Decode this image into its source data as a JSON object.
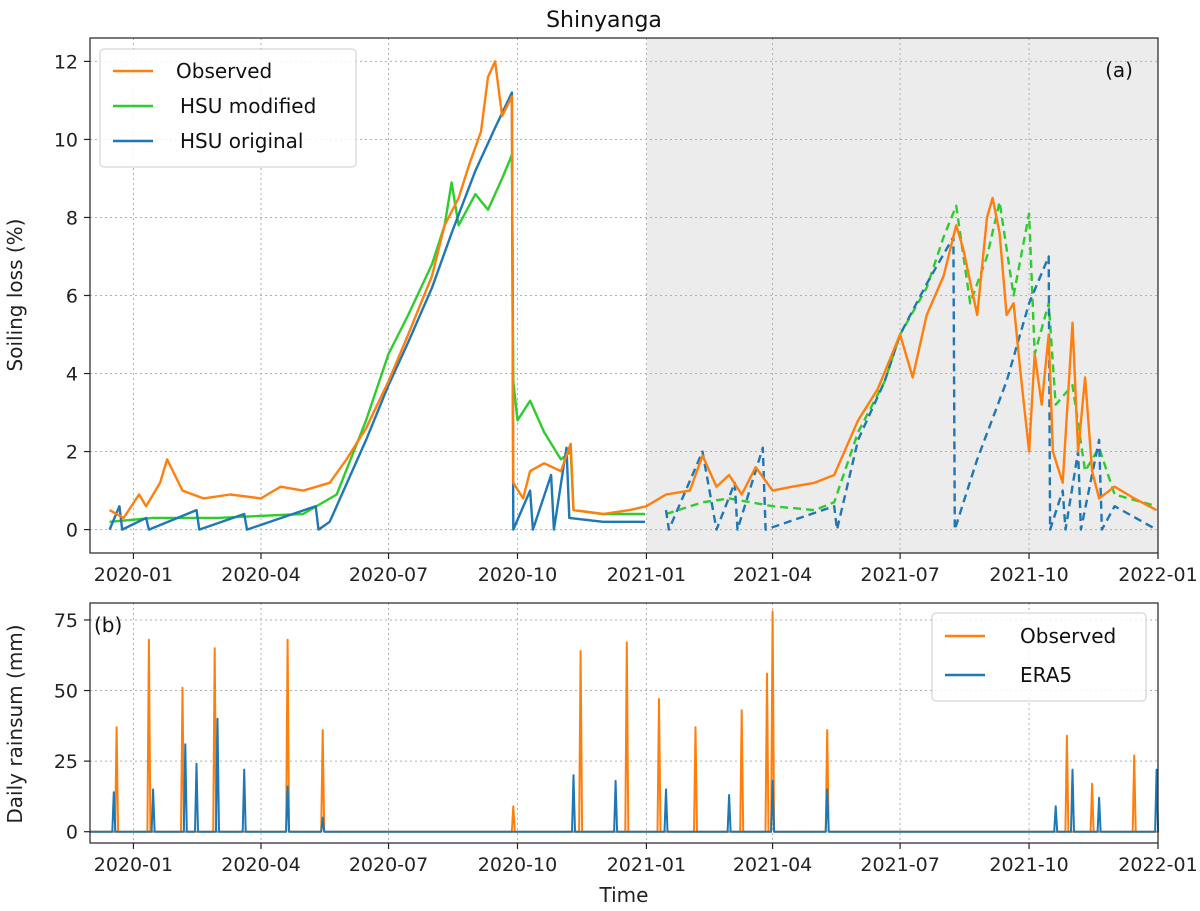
{
  "figure": {
    "title": "Shinyanga"
  },
  "colors": {
    "observed": "#ff7f0e",
    "hsu_modified": "#2ecc2e",
    "hsu_original": "#1f77b4",
    "era5": "#1f77b4",
    "shade": "#ececec",
    "grid": "#b0b0b0"
  },
  "chart_data": [
    {
      "type": "line",
      "panel_label": "(a)",
      "xlabel": "",
      "ylabel": "Soiling loss (%)",
      "x_range": [
        "2019-12-01",
        "2022-01-01"
      ],
      "ylim": [
        -0.6,
        12.6
      ],
      "yticks": [
        0,
        2,
        4,
        6,
        8,
        10,
        12
      ],
      "xticks": [
        "2020-01",
        "2020-04",
        "2020-07",
        "2020-10",
        "2021-01",
        "2021-04",
        "2021-07",
        "2021-10",
        "2022-01"
      ],
      "shaded_region": [
        "2021-01-01",
        "2022-01-01"
      ],
      "grid": true,
      "legend_position": "top-left",
      "series": [
        {
          "name": "Observed",
          "color_key": "observed",
          "dashed_after": null,
          "points": [
            [
              "2019-12-15",
              0.5
            ],
            [
              "2019-12-25",
              0.3
            ],
            [
              "2020-01-05",
              0.9
            ],
            [
              "2020-01-10",
              0.6
            ],
            [
              "2020-01-20",
              1.2
            ],
            [
              "2020-01-25",
              1.8
            ],
            [
              "2020-02-05",
              1.0
            ],
            [
              "2020-02-20",
              0.8
            ],
            [
              "2020-03-10",
              0.9
            ],
            [
              "2020-04-01",
              0.8
            ],
            [
              "2020-04-15",
              1.1
            ],
            [
              "2020-05-01",
              1.0
            ],
            [
              "2020-05-20",
              1.2
            ],
            [
              "2020-06-01",
              1.8
            ],
            [
              "2020-06-15",
              2.6
            ],
            [
              "2020-07-01",
              3.8
            ],
            [
              "2020-07-15",
              5.0
            ],
            [
              "2020-08-01",
              6.5
            ],
            [
              "2020-08-10",
              7.8
            ],
            [
              "2020-08-20",
              8.5
            ],
            [
              "2020-08-28",
              9.4
            ],
            [
              "2020-09-05",
              10.2
            ],
            [
              "2020-09-10",
              11.6
            ],
            [
              "2020-09-15",
              12.0
            ],
            [
              "2020-09-20",
              10.6
            ],
            [
              "2020-09-27",
              11.1
            ],
            [
              "2020-09-28",
              1.2
            ],
            [
              "2020-10-05",
              0.8
            ],
            [
              "2020-10-10",
              1.5
            ],
            [
              "2020-10-20",
              1.7
            ],
            [
              "2020-11-01",
              1.5
            ],
            [
              "2020-11-08",
              2.2
            ],
            [
              "2020-11-10",
              0.5
            ],
            [
              "2020-12-01",
              0.4
            ],
            [
              "2020-12-20",
              0.5
            ],
            [
              "2021-01-01",
              0.6
            ],
            [
              "2021-01-15",
              0.9
            ],
            [
              "2021-02-01",
              1.0
            ],
            [
              "2021-02-10",
              1.9
            ],
            [
              "2021-02-20",
              1.1
            ],
            [
              "2021-03-01",
              1.4
            ],
            [
              "2021-03-10",
              0.9
            ],
            [
              "2021-03-20",
              1.6
            ],
            [
              "2021-04-01",
              1.0
            ],
            [
              "2021-04-15",
              1.1
            ],
            [
              "2021-05-01",
              1.2
            ],
            [
              "2021-05-15",
              1.4
            ],
            [
              "2021-06-01",
              2.8
            ],
            [
              "2021-06-15",
              3.6
            ],
            [
              "2021-07-01",
              5.0
            ],
            [
              "2021-07-10",
              3.9
            ],
            [
              "2021-07-20",
              5.5
            ],
            [
              "2021-08-01",
              6.5
            ],
            [
              "2021-08-10",
              7.8
            ],
            [
              "2021-08-15",
              7.2
            ],
            [
              "2021-08-25",
              5.5
            ],
            [
              "2021-09-01",
              8.0
            ],
            [
              "2021-09-05",
              8.5
            ],
            [
              "2021-09-10",
              7.6
            ],
            [
              "2021-09-15",
              5.5
            ],
            [
              "2021-09-20",
              5.8
            ],
            [
              "2021-09-25",
              4.0
            ],
            [
              "2021-10-01",
              2.0
            ],
            [
              "2021-10-05",
              4.5
            ],
            [
              "2021-10-10",
              3.2
            ],
            [
              "2021-10-15",
              5.0
            ],
            [
              "2021-10-18",
              2.0
            ],
            [
              "2021-10-25",
              1.2
            ],
            [
              "2021-11-01",
              5.3
            ],
            [
              "2021-11-05",
              2.0
            ],
            [
              "2021-11-10",
              3.9
            ],
            [
              "2021-11-15",
              1.5
            ],
            [
              "2021-11-20",
              0.8
            ],
            [
              "2021-12-01",
              1.1
            ],
            [
              "2021-12-15",
              0.8
            ],
            [
              "2021-12-31",
              0.5
            ]
          ]
        },
        {
          "name": "HSU modified",
          "color_key": "hsu_modified",
          "dashed_after": "2021-01-01",
          "points": [
            [
              "2019-12-15",
              0.2
            ],
            [
              "2020-01-15",
              0.3
            ],
            [
              "2020-03-01",
              0.3
            ],
            [
              "2020-05-01",
              0.4
            ],
            [
              "2020-05-25",
              0.9
            ],
            [
              "2020-06-15",
              2.8
            ],
            [
              "2020-07-01",
              4.5
            ],
            [
              "2020-07-15",
              5.5
            ],
            [
              "2020-08-01",
              6.8
            ],
            [
              "2020-08-10",
              7.8
            ],
            [
              "2020-08-15",
              8.9
            ],
            [
              "2020-08-20",
              7.8
            ],
            [
              "2020-09-01",
              8.6
            ],
            [
              "2020-09-10",
              8.2
            ],
            [
              "2020-09-20",
              9.0
            ],
            [
              "2020-09-27",
              9.6
            ],
            [
              "2020-09-28",
              3.8
            ],
            [
              "2020-10-01",
              2.8
            ],
            [
              "2020-10-10",
              3.3
            ],
            [
              "2020-10-20",
              2.5
            ],
            [
              "2020-11-01",
              1.8
            ],
            [
              "2020-11-08",
              2.0
            ],
            [
              "2020-11-10",
              0.5
            ],
            [
              "2020-12-01",
              0.4
            ],
            [
              "2020-12-31",
              0.4
            ],
            [
              "2021-01-15",
              0.4
            ],
            [
              "2021-02-10",
              0.7
            ],
            [
              "2021-03-01",
              0.8
            ],
            [
              "2021-04-01",
              0.6
            ],
            [
              "2021-05-01",
              0.5
            ],
            [
              "2021-05-15",
              0.7
            ],
            [
              "2021-06-01",
              2.5
            ],
            [
              "2021-06-20",
              3.8
            ],
            [
              "2021-07-01",
              5.0
            ],
            [
              "2021-07-20",
              6.2
            ],
            [
              "2021-08-01",
              7.5
            ],
            [
              "2021-08-10",
              8.3
            ],
            [
              "2021-08-20",
              5.8
            ],
            [
              "2021-09-01",
              7.0
            ],
            [
              "2021-09-10",
              8.4
            ],
            [
              "2021-09-20",
              6.0
            ],
            [
              "2021-10-01",
              8.1
            ],
            [
              "2021-10-05",
              4.5
            ],
            [
              "2021-10-15",
              5.8
            ],
            [
              "2021-10-20",
              3.2
            ],
            [
              "2021-11-01",
              3.7
            ],
            [
              "2021-11-10",
              1.5
            ],
            [
              "2021-11-20",
              2.1
            ],
            [
              "2021-12-01",
              0.9
            ],
            [
              "2021-12-31",
              0.6
            ]
          ]
        },
        {
          "name": "HSU original",
          "color_key": "hsu_original",
          "dashed_after": "2021-01-01",
          "points": [
            [
              "2019-12-15",
              0.0
            ],
            [
              "2019-12-22",
              0.6
            ],
            [
              "2019-12-24",
              0.0
            ],
            [
              "2020-01-10",
              0.3
            ],
            [
              "2020-01-12",
              0.0
            ],
            [
              "2020-02-15",
              0.5
            ],
            [
              "2020-02-17",
              0.0
            ],
            [
              "2020-03-20",
              0.4
            ],
            [
              "2020-03-22",
              0.0
            ],
            [
              "2020-05-10",
              0.6
            ],
            [
              "2020-05-12",
              0.0
            ],
            [
              "2020-05-20",
              0.2
            ],
            [
              "2020-06-15",
              2.3
            ],
            [
              "2020-07-01",
              3.7
            ],
            [
              "2020-07-15",
              4.8
            ],
            [
              "2020-08-01",
              6.2
            ],
            [
              "2020-08-15",
              7.6
            ],
            [
              "2020-09-01",
              9.2
            ],
            [
              "2020-09-15",
              10.3
            ],
            [
              "2020-09-27",
              11.2
            ],
            [
              "2020-09-28",
              0.0
            ],
            [
              "2020-10-10",
              1.0
            ],
            [
              "2020-10-12",
              0.0
            ],
            [
              "2020-10-25",
              1.4
            ],
            [
              "2020-10-27",
              0.0
            ],
            [
              "2020-11-05",
              2.1
            ],
            [
              "2020-11-07",
              0.3
            ],
            [
              "2020-12-01",
              0.2
            ],
            [
              "2020-12-31",
              0.2
            ],
            [
              "2021-01-15",
              0.5
            ],
            [
              "2021-01-17",
              0.0
            ],
            [
              "2021-02-10",
              2.0
            ],
            [
              "2021-02-20",
              0.0
            ],
            [
              "2021-03-05",
              1.2
            ],
            [
              "2021-03-07",
              0.0
            ],
            [
              "2021-03-25",
              2.1
            ],
            [
              "2021-03-27",
              0.0
            ],
            [
              "2021-05-15",
              0.6
            ],
            [
              "2021-05-17",
              0.0
            ],
            [
              "2021-06-01",
              2.3
            ],
            [
              "2021-06-20",
              3.8
            ],
            [
              "2021-07-01",
              5.0
            ],
            [
              "2021-07-20",
              6.3
            ],
            [
              "2021-08-08",
              7.5
            ],
            [
              "2021-08-09",
              0.0
            ],
            [
              "2021-08-25",
              1.8
            ],
            [
              "2021-09-15",
              3.8
            ],
            [
              "2021-10-01",
              5.8
            ],
            [
              "2021-10-15",
              7.0
            ],
            [
              "2021-10-16",
              0.0
            ],
            [
              "2021-10-25",
              1.0
            ],
            [
              "2021-10-27",
              0.0
            ],
            [
              "2021-11-05",
              2.0
            ],
            [
              "2021-11-07",
              0.0
            ],
            [
              "2021-11-20",
              2.3
            ],
            [
              "2021-11-22",
              0.0
            ],
            [
              "2021-12-01",
              0.6
            ],
            [
              "2021-12-31",
              0.0
            ]
          ]
        }
      ]
    },
    {
      "type": "line",
      "panel_label": "(b)",
      "xlabel": "Time",
      "ylabel": "Daily rainsum (mm)",
      "x_range": [
        "2019-12-01",
        "2022-01-01"
      ],
      "ylim": [
        -4,
        81
      ],
      "yticks": [
        0,
        25,
        50,
        75
      ],
      "xticks": [
        "2020-01",
        "2020-04",
        "2020-07",
        "2020-10",
        "2021-01",
        "2021-04",
        "2021-07",
        "2021-10",
        "2022-01"
      ],
      "grid": true,
      "legend_position": "top-right",
      "series": [
        {
          "name": "Observed",
          "color_key": "observed",
          "spikes": [
            [
              "2019-12-20",
              37
            ],
            [
              "2020-01-12",
              68
            ],
            [
              "2020-02-05",
              51
            ],
            [
              "2020-02-28",
              65
            ],
            [
              "2020-04-20",
              68
            ],
            [
              "2020-05-15",
              36
            ],
            [
              "2020-09-28",
              9
            ],
            [
              "2020-11-15",
              64
            ],
            [
              "2020-12-18",
              67
            ],
            [
              "2021-01-10",
              47
            ],
            [
              "2021-02-05",
              37
            ],
            [
              "2021-03-10",
              43
            ],
            [
              "2021-04-01",
              78
            ],
            [
              "2021-03-28",
              56
            ],
            [
              "2021-05-10",
              36
            ],
            [
              "2021-10-28",
              34
            ],
            [
              "2021-11-15",
              17
            ],
            [
              "2021-12-15",
              27
            ]
          ]
        },
        {
          "name": "ERA5",
          "color_key": "era5",
          "spikes": [
            [
              "2019-12-18",
              14
            ],
            [
              "2020-01-15",
              15
            ],
            [
              "2020-02-07",
              31
            ],
            [
              "2020-02-15",
              24
            ],
            [
              "2020-03-01",
              40
            ],
            [
              "2020-03-20",
              22
            ],
            [
              "2020-04-20",
              16
            ],
            [
              "2020-05-15",
              5
            ],
            [
              "2020-11-10",
              20
            ],
            [
              "2020-12-10",
              18
            ],
            [
              "2021-01-15",
              15
            ],
            [
              "2021-03-01",
              13
            ],
            [
              "2021-04-01",
              18
            ],
            [
              "2021-05-10",
              15
            ],
            [
              "2021-10-20",
              9
            ],
            [
              "2021-11-01",
              22
            ],
            [
              "2021-11-20",
              12
            ],
            [
              "2021-12-31",
              22
            ]
          ]
        }
      ]
    }
  ]
}
